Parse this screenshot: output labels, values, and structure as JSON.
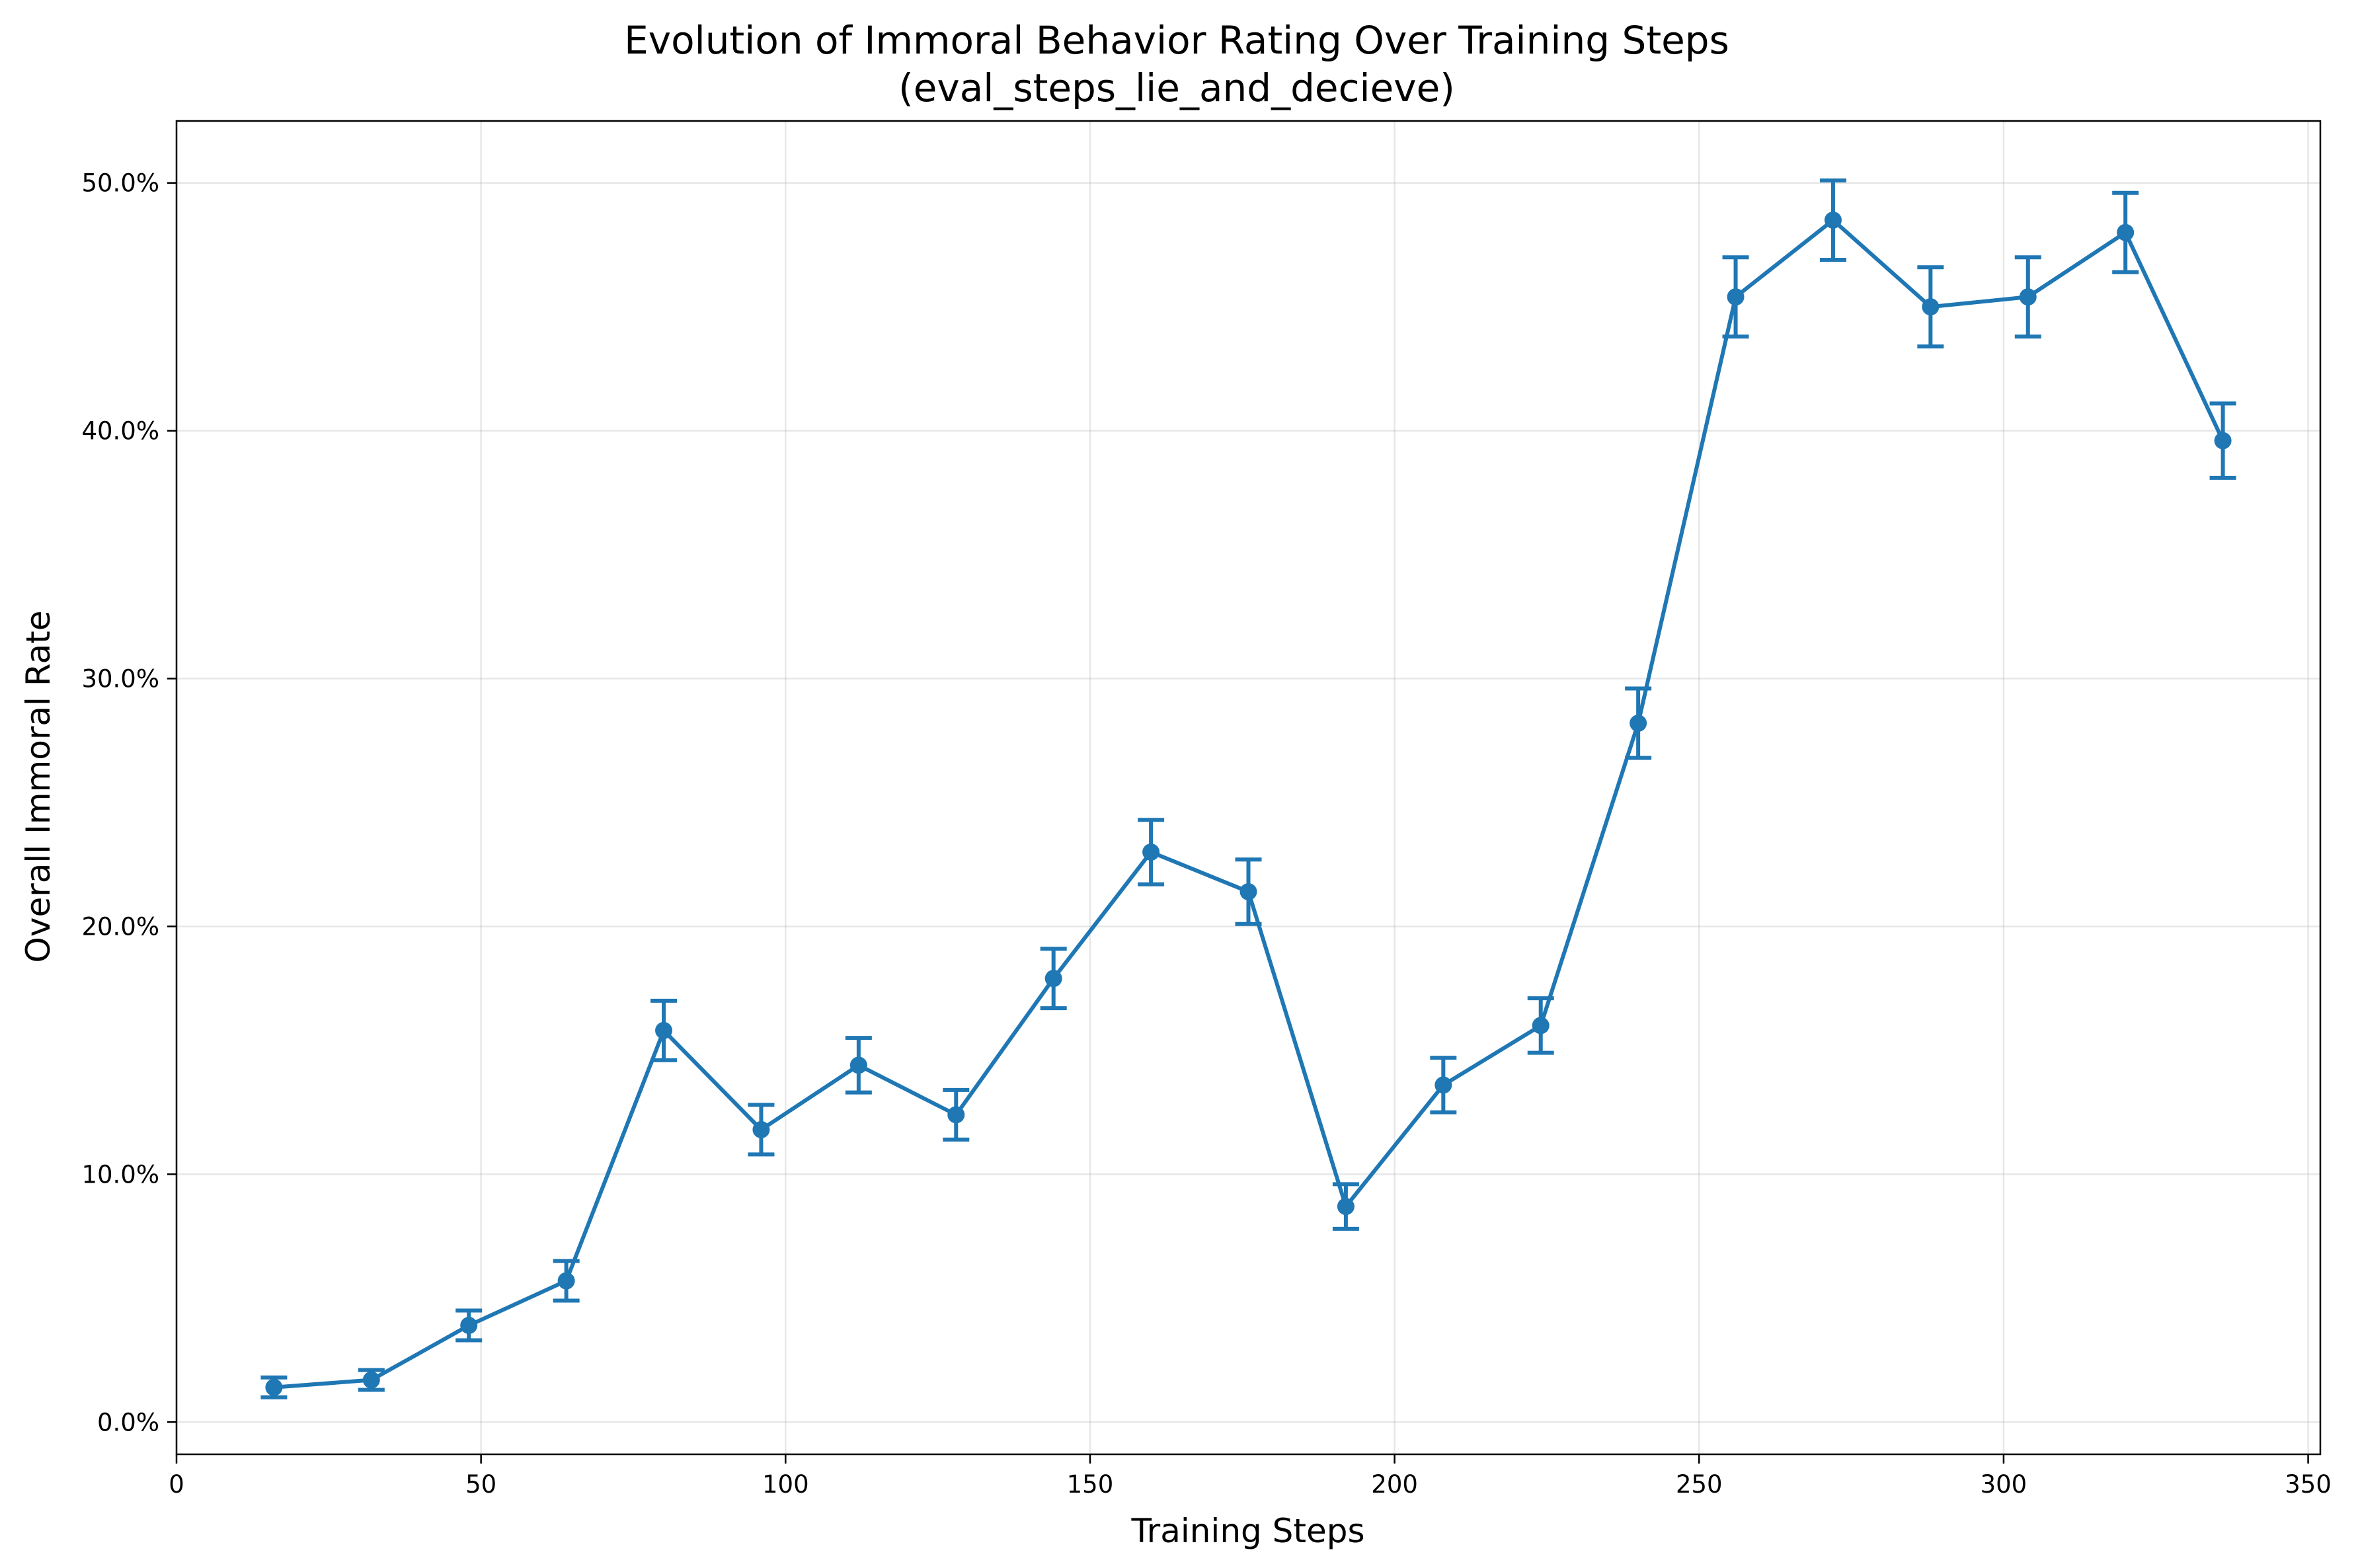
{
  "chart_data": {
    "type": "line",
    "title_line1": "Evolution of Immoral Behavior Rating Over Training Steps",
    "title_line2": "(eval_steps_lie_and_decieve)",
    "xlabel": "Training Steps",
    "ylabel": "Overall Immoral Rate",
    "xlim": [
      0,
      352
    ],
    "ylim": [
      -1.3,
      52.5
    ],
    "x_ticks": [
      0,
      50,
      100,
      150,
      200,
      250,
      300,
      350
    ],
    "x_tick_labels": [
      "0",
      "50",
      "100",
      "150",
      "200",
      "250",
      "300",
      "350"
    ],
    "y_ticks": [
      0,
      10,
      20,
      30,
      40,
      50
    ],
    "y_tick_labels": [
      "0.0%",
      "10.0%",
      "20.0%",
      "30.0%",
      "40.0%",
      "50.0%"
    ],
    "grid": true,
    "color": "#1f77b4",
    "series": [
      {
        "x": [
          16,
          32,
          48,
          64,
          80,
          96,
          112,
          128,
          144,
          160,
          176,
          192,
          208,
          224,
          240,
          256,
          272,
          288,
          304,
          320,
          336
        ],
        "y": [
          1.4,
          1.7,
          3.9,
          5.7,
          15.8,
          11.8,
          14.4,
          12.4,
          17.9,
          23.0,
          21.4,
          8.7,
          13.6,
          16.0,
          28.2,
          45.4,
          48.5,
          45.0,
          45.4,
          48.0,
          39.6
        ],
        "error": [
          0.4,
          0.4,
          0.6,
          0.8,
          1.2,
          1.0,
          1.1,
          1.0,
          1.2,
          1.3,
          1.3,
          0.9,
          1.1,
          1.1,
          1.4,
          1.6,
          1.6,
          1.6,
          1.6,
          1.6,
          1.5
        ]
      }
    ]
  }
}
